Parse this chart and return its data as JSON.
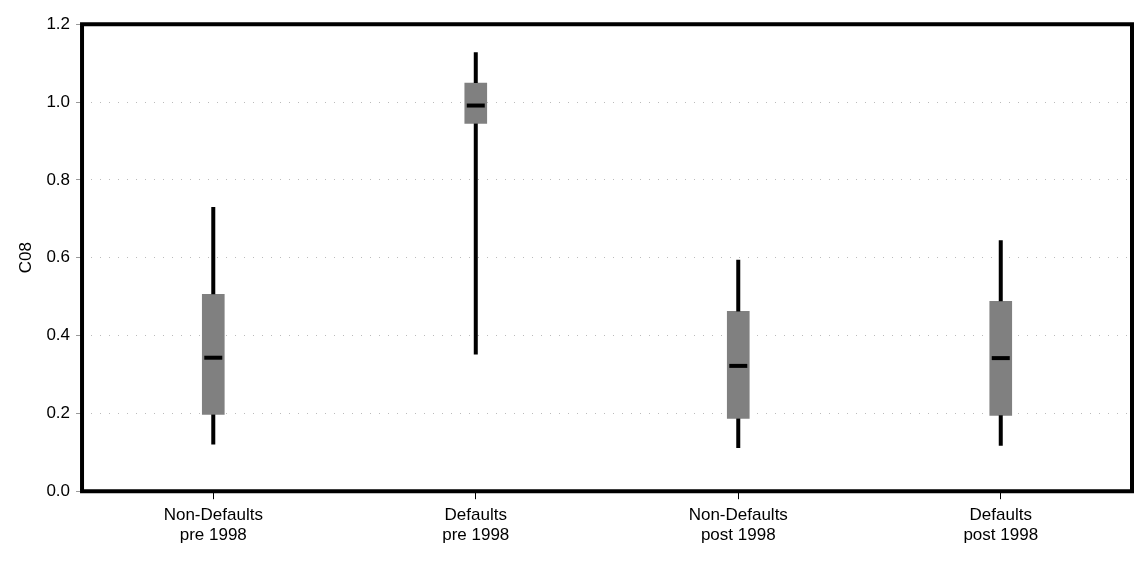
{
  "chart_data": {
    "type": "box",
    "ylabel": "C08",
    "categories": [
      "Non-Defaults\npre 1998",
      "Defaults\npre 1998",
      "Non-Defaults\npost 1998",
      "Defaults\npost 1998"
    ],
    "boxes": [
      {
        "low": 0.12,
        "q1": 0.197,
        "median": 0.343,
        "q3": 0.506,
        "high": 0.73
      },
      {
        "low": 0.351,
        "q1": 0.945,
        "median": 0.991,
        "q3": 1.049,
        "high": 1.128
      },
      {
        "low": 0.111,
        "q1": 0.187,
        "median": 0.322,
        "q3": 0.462,
        "high": 0.595
      },
      {
        "low": 0.117,
        "q1": 0.195,
        "median": 0.342,
        "q3": 0.488,
        "high": 0.645
      }
    ],
    "color": "#808080",
    "ylim": [
      0,
      1.2
    ],
    "yticks": [
      {
        "value": 0,
        "label": "0.0"
      },
      0.2,
      0.4,
      0.6,
      0.8,
      {
        "value": 1,
        "label": "1.0"
      },
      1.2
    ],
    "grid": "y"
  }
}
